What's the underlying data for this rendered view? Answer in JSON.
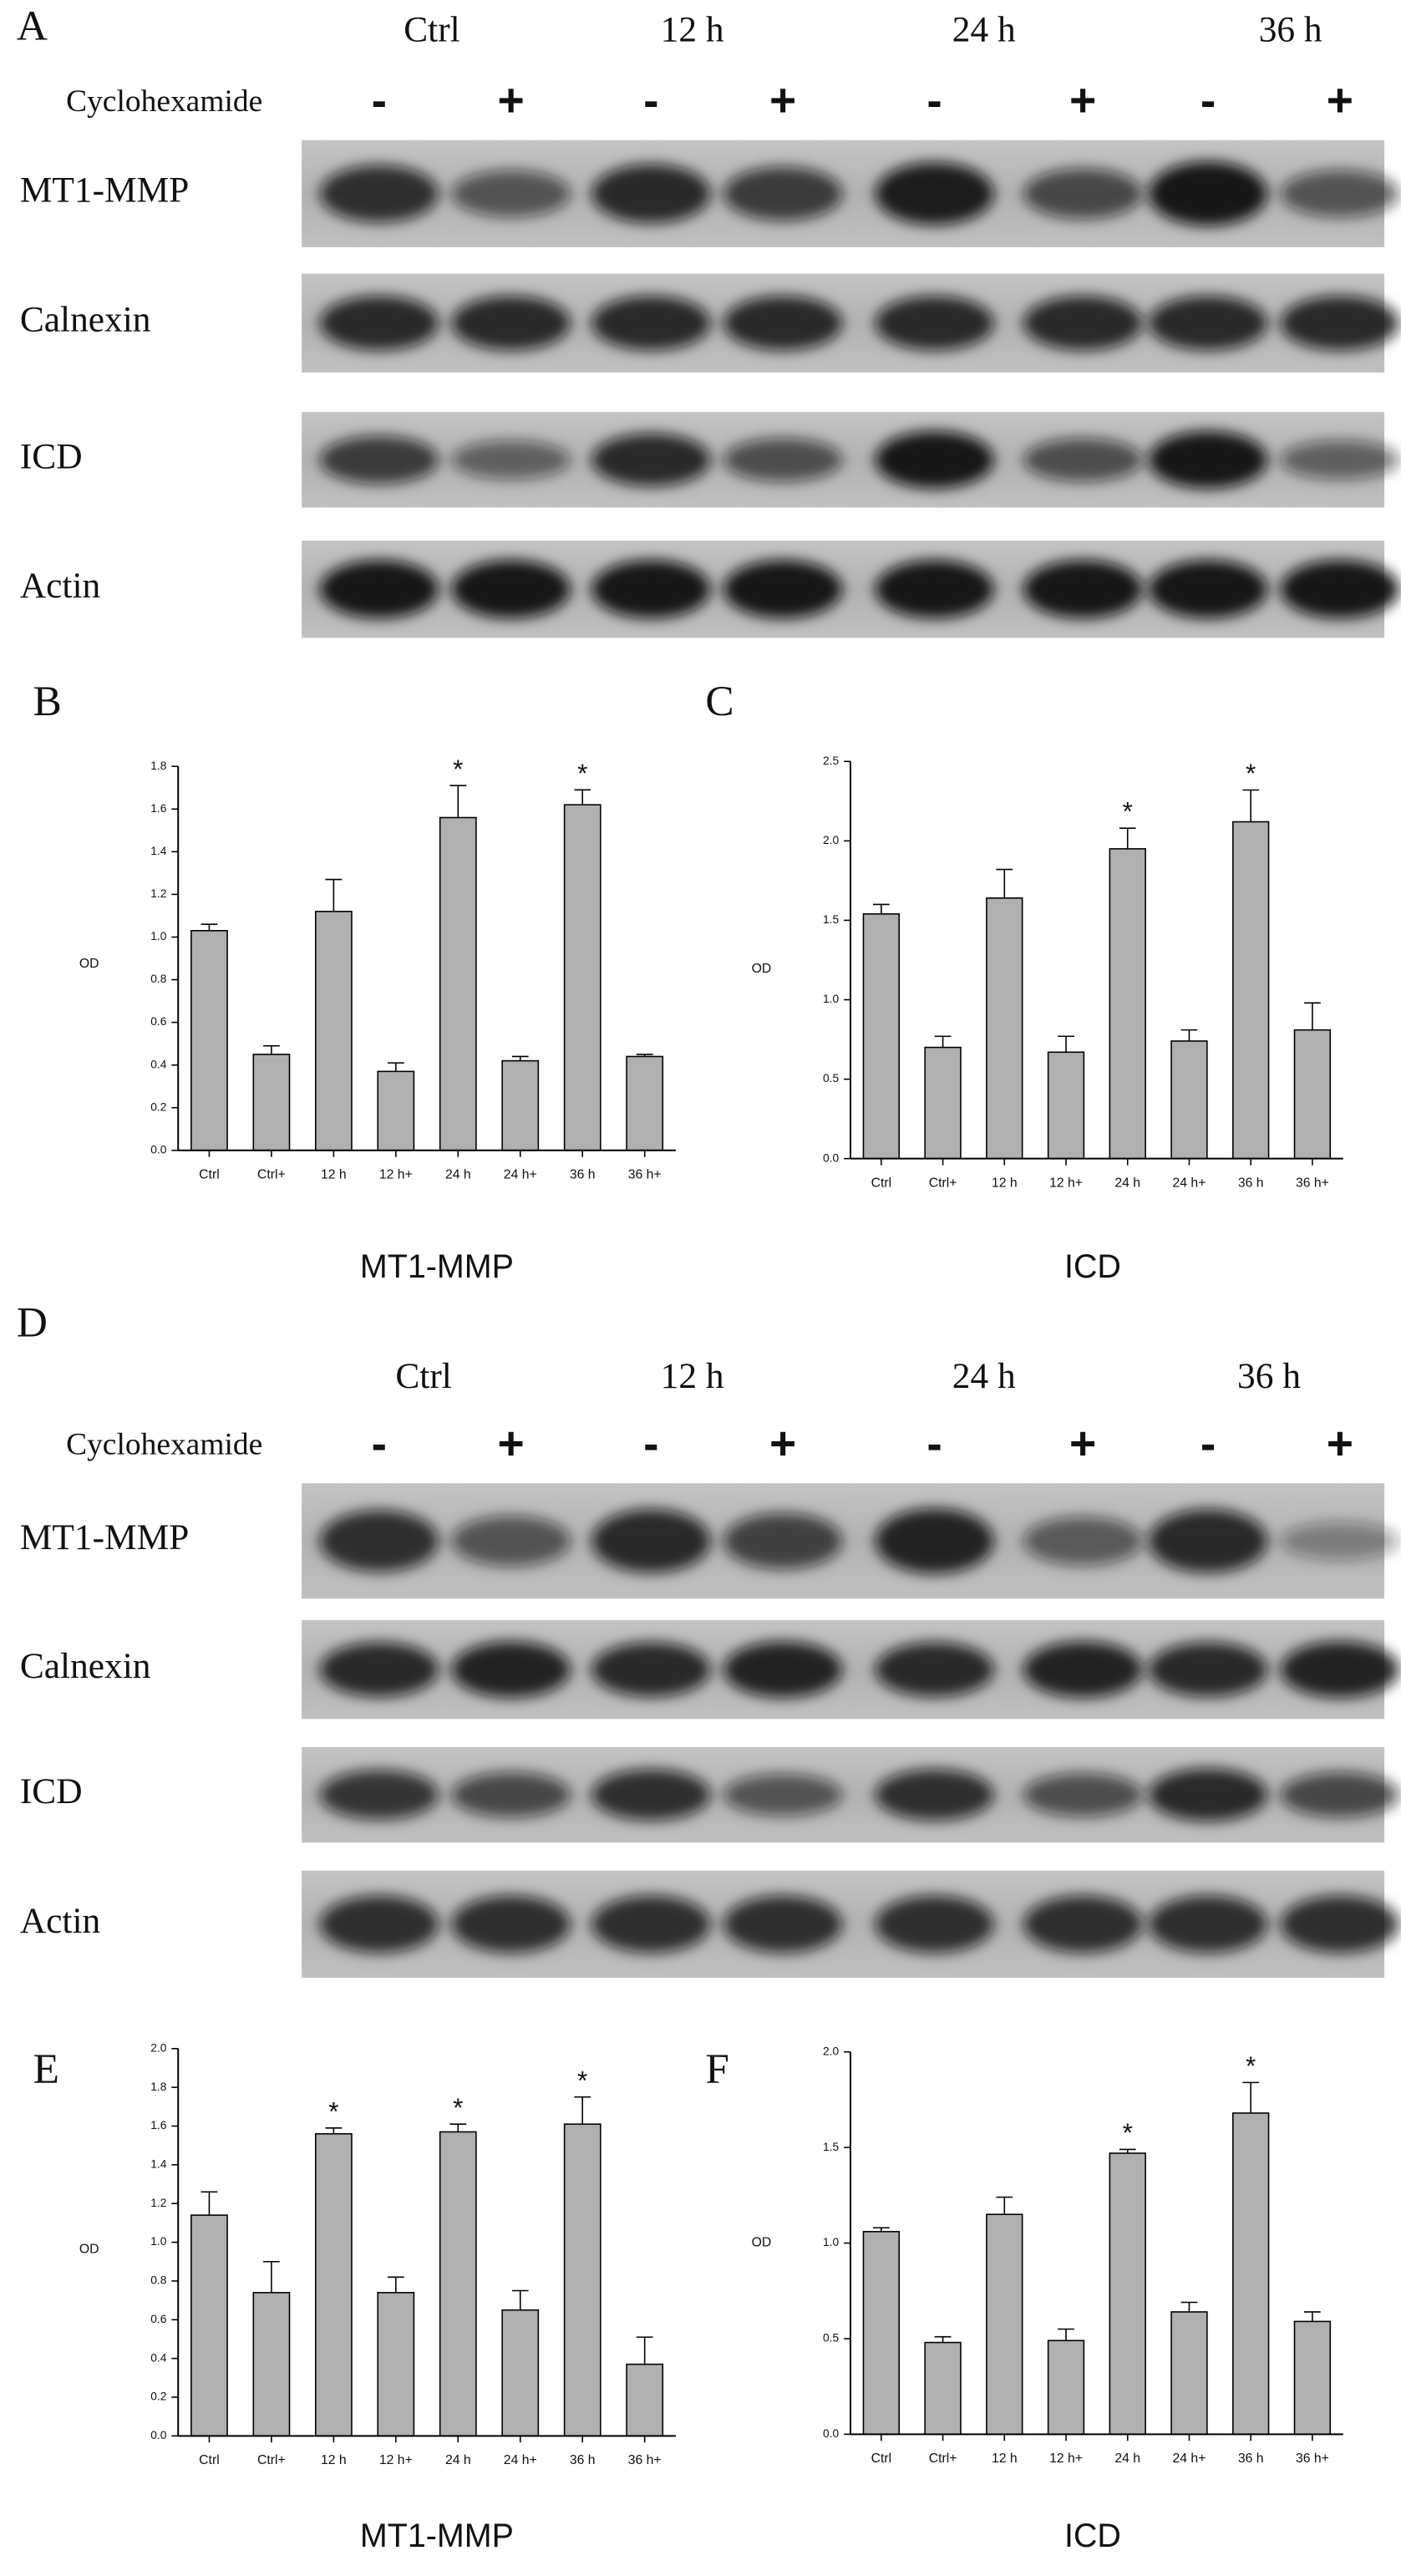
{
  "blots": [
    {
      "panel": "A",
      "timepoints": [
        "Ctrl",
        "12 h",
        "24 h",
        "36 h"
      ],
      "treatment": "Cyclohexamide",
      "signs": [
        "-",
        "+",
        "-",
        "+",
        "-",
        "+",
        "-",
        "+"
      ],
      "rows": [
        "MT1-MMP",
        "Calnexin",
        "ICD",
        "Actin"
      ]
    },
    {
      "panel": "D",
      "timepoints": [
        "Ctrl",
        "12 h",
        "24 h",
        "36 h"
      ],
      "treatment": "Cyclohexamide",
      "signs": [
        "-",
        "+",
        "-",
        "+",
        "-",
        "+",
        "-",
        "+"
      ],
      "rows": [
        "MT1-MMP",
        "Calnexin",
        "ICD",
        "Actin"
      ]
    }
  ],
  "chart_data": [
    {
      "type": "bar",
      "panel": "B",
      "title": "MT1-MMP",
      "ylabel": "OD",
      "color": "#b0b0b0",
      "categories": [
        "Ctrl",
        "Ctrl+",
        "12 h",
        "12 h+",
        "24 h",
        "24 h+",
        "36 h",
        "36 h+"
      ],
      "values": [
        1.03,
        0.45,
        1.12,
        0.37,
        1.56,
        0.42,
        1.62,
        0.44
      ],
      "errors": [
        0.03,
        0.04,
        0.15,
        0.04,
        0.15,
        0.02,
        0.07,
        0.01
      ],
      "ylim": [
        0,
        1.8
      ],
      "yticks": [
        {
          "value": 0,
          "label": "0.0"
        },
        {
          "value": 0.2,
          "label": "0.2"
        },
        {
          "value": 0.4,
          "label": "0.4"
        },
        {
          "value": 0.6,
          "label": "0.6"
        },
        {
          "value": 0.8,
          "label": "0.8"
        },
        {
          "value": 1,
          "label": "1.0"
        },
        {
          "value": 1.2,
          "label": "1.2"
        },
        {
          "value": 1.4,
          "label": "1.4"
        },
        {
          "value": 1.6,
          "label": "1.6"
        },
        {
          "value": 1.8,
          "label": "1.8"
        }
      ],
      "annotations": [
        {
          "x": "24 h",
          "text": "*"
        },
        {
          "x": "36 h",
          "text": "*"
        }
      ]
    },
    {
      "type": "bar",
      "panel": "C",
      "title": "ICD",
      "ylabel": "OD",
      "color": "#b0b0b0",
      "categories": [
        "Ctrl",
        "Ctrl+",
        "12 h",
        "12 h+",
        "24 h",
        "24 h+",
        "36 h",
        "36 h+"
      ],
      "values": [
        1.54,
        0.7,
        1.64,
        0.67,
        1.95,
        0.74,
        2.12,
        0.81
      ],
      "errors": [
        0.06,
        0.07,
        0.18,
        0.1,
        0.13,
        0.07,
        0.2,
        0.17
      ],
      "ylim": [
        0,
        2.5
      ],
      "yticks": [
        {
          "value": 0,
          "label": "0.0"
        },
        {
          "value": 0.5,
          "label": "0.5"
        },
        {
          "value": 1,
          "label": "1.0"
        },
        {
          "value": 1.5,
          "label": "1.5"
        },
        {
          "value": 2,
          "label": "2.0"
        },
        2.5
      ],
      "annotations": [
        {
          "x": "24 h",
          "text": "*"
        },
        {
          "x": "36 h",
          "text": "*"
        }
      ]
    },
    {
      "type": "bar",
      "panel": "E",
      "title": "MT1-MMP",
      "ylabel": "OD",
      "color": "#b0b0b0",
      "categories": [
        "Ctrl",
        "Ctrl+",
        "12 h",
        "12 h+",
        "24 h",
        "24 h+",
        "36 h",
        "36 h+"
      ],
      "values": [
        1.14,
        0.74,
        1.56,
        0.74,
        1.57,
        0.65,
        1.61,
        0.37
      ],
      "errors": [
        0.12,
        0.16,
        0.03,
        0.08,
        0.04,
        0.1,
        0.14,
        0.14
      ],
      "ylim": [
        0,
        2
      ],
      "yticks": [
        {
          "value": 0,
          "label": "0.0"
        },
        {
          "value": 0.2,
          "label": "0.2"
        },
        {
          "value": 0.4,
          "label": "0.4"
        },
        {
          "value": 0.6,
          "label": "0.6"
        },
        {
          "value": 0.8,
          "label": "0.8"
        },
        {
          "value": 1,
          "label": "1.0"
        },
        {
          "value": 1.2,
          "label": "1.2"
        },
        {
          "value": 1.4,
          "label": "1.4"
        },
        {
          "value": 1.6,
          "label": "1.6"
        },
        {
          "value": 1.8,
          "label": "1.8"
        },
        {
          "value": 2,
          "label": "2.0"
        }
      ],
      "annotations": [
        {
          "x": "12 h",
          "text": "*"
        },
        {
          "x": "24 h",
          "text": "*"
        },
        {
          "x": "36 h",
          "text": "*"
        }
      ]
    },
    {
      "type": "bar",
      "panel": "F",
      "title": "ICD",
      "ylabel": "OD",
      "color": "#b0b0b0",
      "categories": [
        "Ctrl",
        "Ctrl+",
        "12 h",
        "12 h+",
        "24 h",
        "24 h+",
        "36 h",
        "36 h+"
      ],
      "values": [
        1.06,
        0.48,
        1.15,
        0.49,
        1.47,
        0.64,
        1.68,
        0.59
      ],
      "errors": [
        0.02,
        0.03,
        0.09,
        0.06,
        0.02,
        0.05,
        0.16,
        0.05
      ],
      "ylim": [
        0,
        2
      ],
      "yticks": [
        {
          "value": 0,
          "label": "0.0"
        },
        {
          "value": 0.5,
          "label": "0.5"
        },
        {
          "value": 1,
          "label": "1.0"
        },
        {
          "value": 1.5,
          "label": "1.5"
        },
        {
          "value": 2,
          "label": "2.0"
        }
      ],
      "annotations": [
        {
          "x": "24 h",
          "text": "*"
        },
        {
          "x": "36 h",
          "text": "*"
        }
      ]
    }
  ]
}
